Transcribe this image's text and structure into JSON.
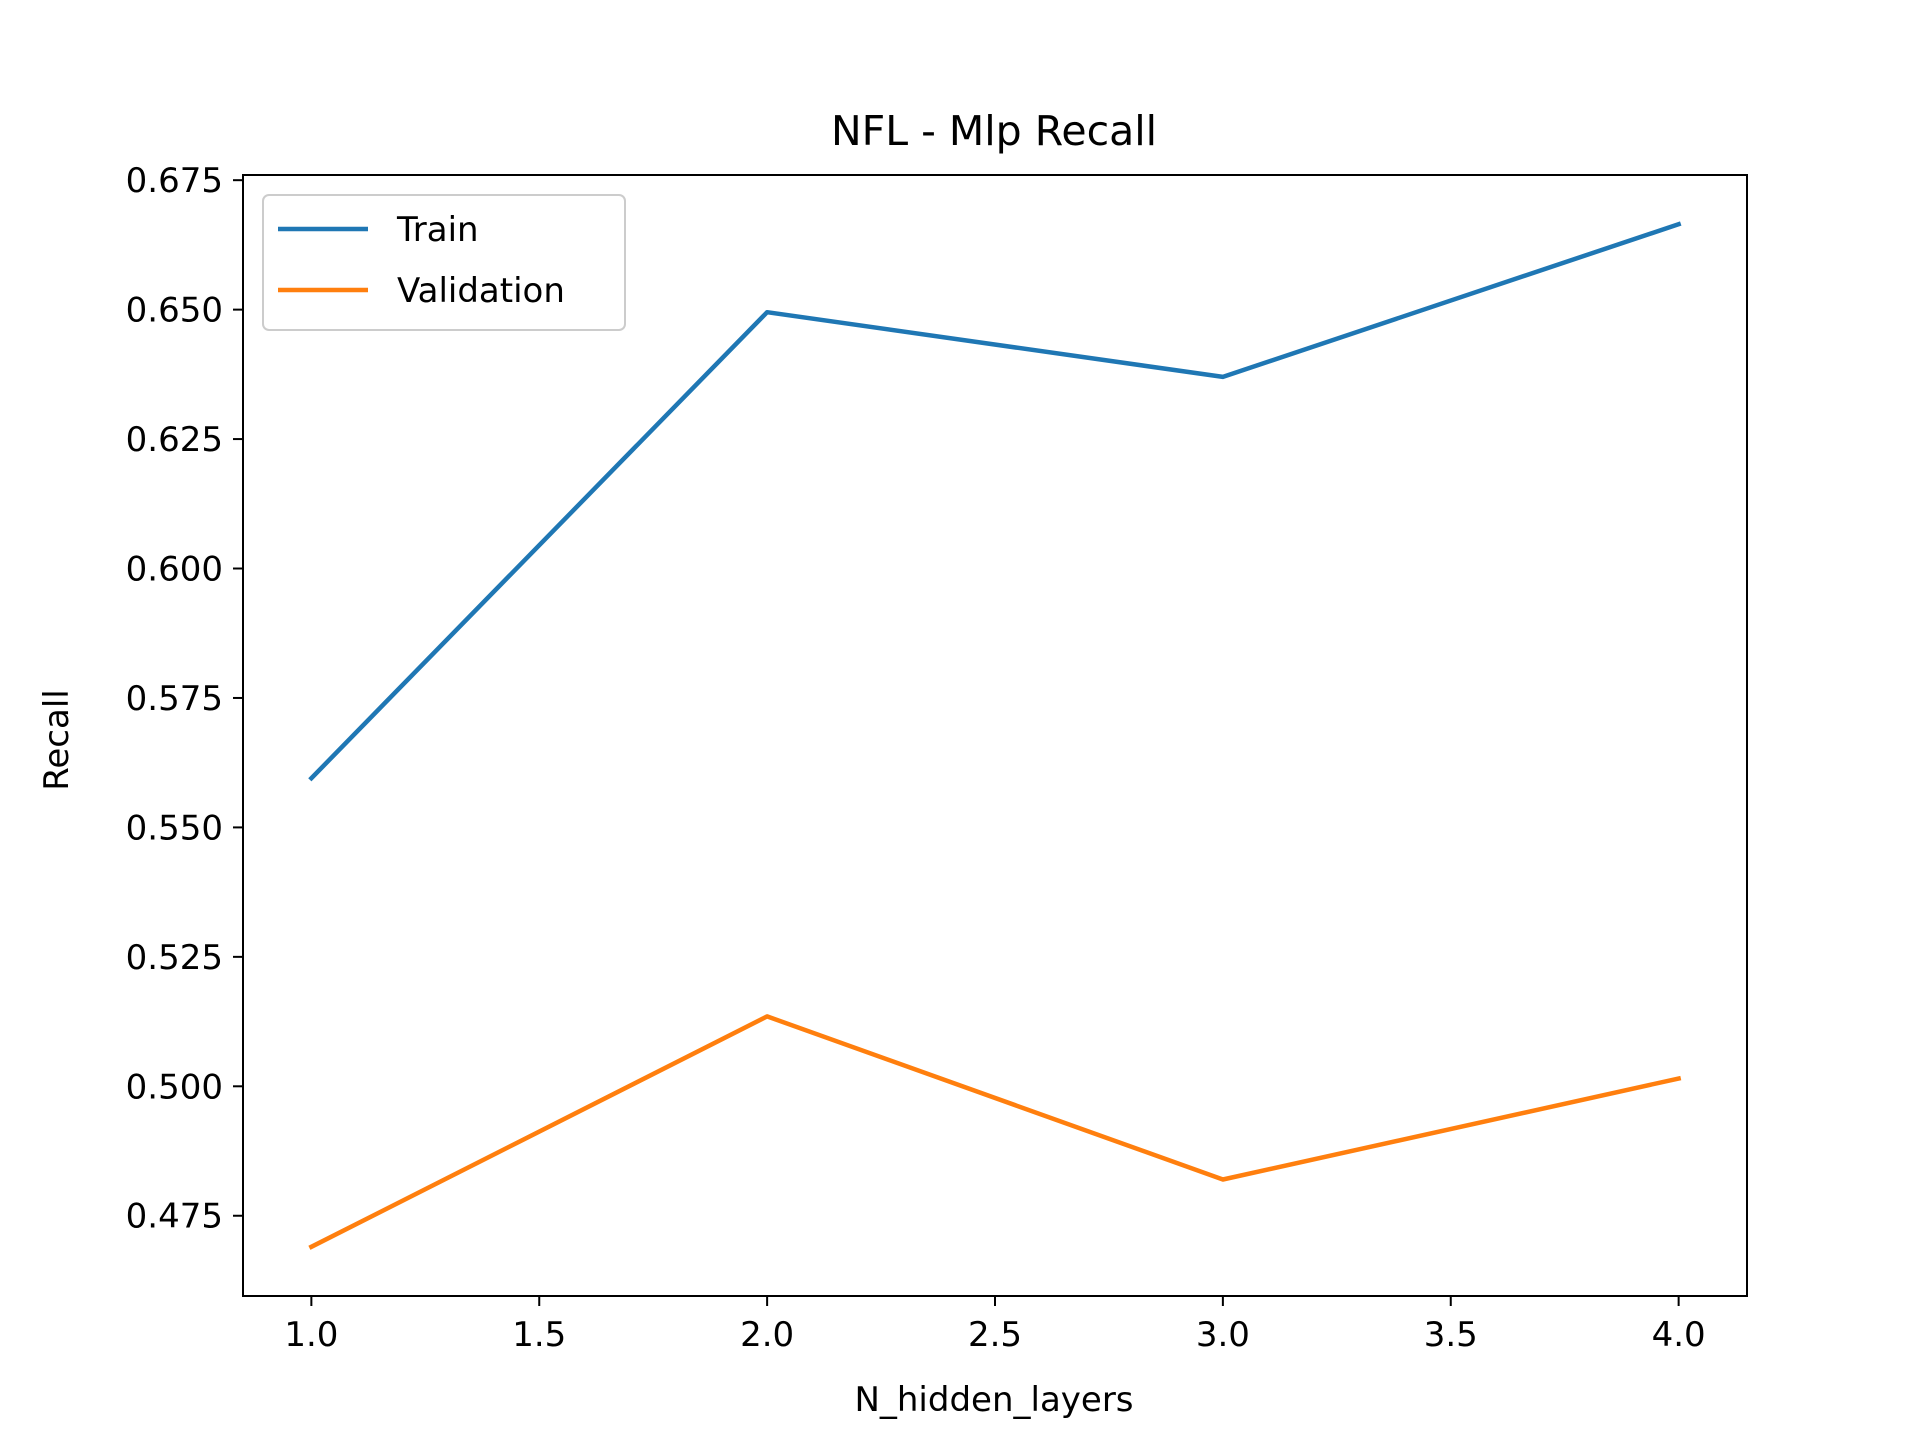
{
  "chart_data": {
    "type": "line",
    "title": "NFL - Mlp Recall",
    "xlabel": "N_hidden_layers",
    "ylabel": "Recall",
    "xlim": [
      0.85,
      4.15
    ],
    "ylim": [
      0.4595,
      0.676
    ],
    "xticks": [
      1.0,
      1.5,
      2.0,
      2.5,
      3.0,
      3.5,
      4.0
    ],
    "xtick_labels": [
      "1.0",
      "1.5",
      "2.0",
      "2.5",
      "3.0",
      "3.5",
      "4.0"
    ],
    "yticks": [
      0.475,
      0.5,
      0.525,
      0.55,
      0.575,
      0.6,
      0.625,
      0.65,
      0.675
    ],
    "ytick_labels": [
      "0.475",
      "0.500",
      "0.525",
      "0.550",
      "0.575",
      "0.600",
      "0.625",
      "0.650",
      "0.675"
    ],
    "grid": false,
    "legend_position": "upper-left",
    "x": [
      1,
      2,
      3,
      4
    ],
    "series": [
      {
        "name": "Train",
        "color": "#1f77b4",
        "values": [
          0.5595,
          0.6495,
          0.637,
          0.6665
        ]
      },
      {
        "name": "Validation",
        "color": "#ff7f0e",
        "values": [
          0.469,
          0.5135,
          0.482,
          0.5015
        ]
      }
    ]
  }
}
